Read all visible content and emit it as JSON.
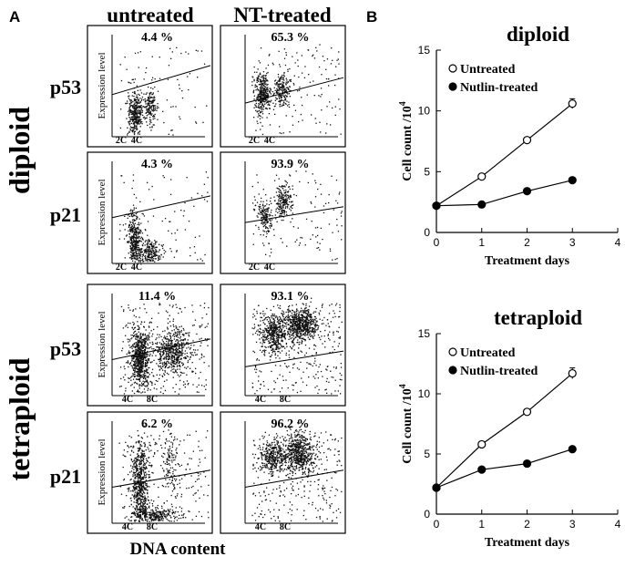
{
  "panel_a": {
    "label": "A",
    "col_headers": [
      "untreated",
      "NT-treated"
    ],
    "group_labels": [
      "diploid",
      "tetraploid"
    ],
    "row_labels": [
      "p53",
      "p21",
      "p53",
      "p21"
    ],
    "ylabel": "Expression level",
    "xlabel": "DNA content",
    "diploid_ticks": [
      "2C",
      "4C"
    ],
    "tetraploid_ticks": [
      "4C",
      "8C"
    ],
    "percentages": [
      [
        "4.4 %",
        "65.3 %"
      ],
      [
        "4.3 %",
        "93.9 %"
      ],
      [
        "11.4 %",
        "93.1 %"
      ],
      [
        "6.2 %",
        "96.2 %"
      ]
    ]
  },
  "panel_b": {
    "label": "B"
  },
  "chart_data": [
    {
      "type": "line",
      "title": "diploid",
      "xlabel": "Treatment days",
      "ylabel": "Cell count /10",
      "ylabel_sup": "4",
      "xlim": [
        0,
        4
      ],
      "ylim": [
        0,
        15
      ],
      "xticks": [
        0,
        1,
        2,
        3,
        4
      ],
      "yticks": [
        0,
        5,
        10,
        15
      ],
      "x": [
        0,
        1,
        2,
        3
      ],
      "series": [
        {
          "name": "Untreated",
          "marker": "open",
          "values": [
            2.2,
            4.6,
            7.6,
            10.6
          ],
          "error": [
            0,
            0.15,
            0.15,
            0.4
          ]
        },
        {
          "name": "Nutlin-treated",
          "marker": "filled",
          "values": [
            2.2,
            2.3,
            3.4,
            4.3
          ],
          "error": [
            0,
            0,
            0,
            0
          ]
        }
      ]
    },
    {
      "type": "line",
      "title": "tetraploid",
      "xlabel": "Treatment days",
      "ylabel": "Cell count /10",
      "ylabel_sup": "4",
      "xlim": [
        0,
        4
      ],
      "ylim": [
        0,
        15
      ],
      "xticks": [
        0,
        1,
        2,
        3,
        4
      ],
      "yticks": [
        0,
        5,
        10,
        15
      ],
      "x": [
        0,
        1,
        2,
        3
      ],
      "series": [
        {
          "name": "Untreated",
          "marker": "open",
          "values": [
            2.2,
            5.8,
            8.5,
            11.7
          ],
          "error": [
            0,
            0.2,
            0.15,
            0.45
          ]
        },
        {
          "name": "Nutlin-treated",
          "marker": "filled",
          "values": [
            2.2,
            3.7,
            4.2,
            5.4
          ],
          "error": [
            0,
            0,
            0,
            0
          ]
        }
      ]
    }
  ]
}
